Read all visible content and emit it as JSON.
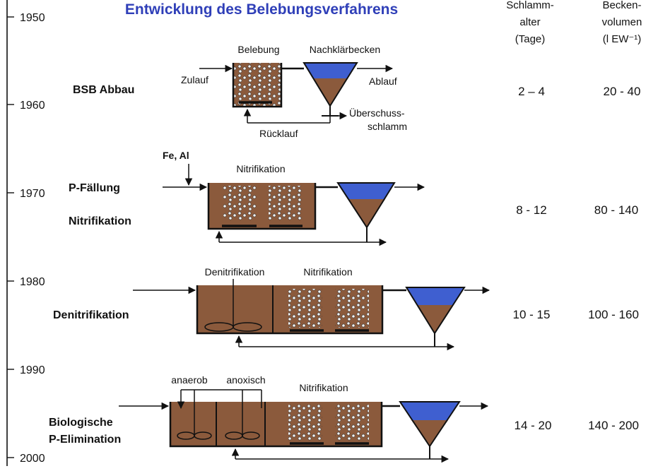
{
  "title": "Entwicklung des Belebungsverfahrens",
  "timeline": {
    "years": [
      "1950",
      "1960",
      "1970",
      "1980",
      "1990",
      "2000"
    ]
  },
  "columns": {
    "sludge_age": [
      "Schlamm-",
      "alter",
      "(Tage)"
    ],
    "tank_volume": [
      "Becken-",
      "volumen",
      "(l EW⁻¹)"
    ]
  },
  "stages": [
    {
      "labels": [
        "BSB Abbau"
      ],
      "tank_labels": [
        "Belebung",
        "Nachklärbecken"
      ],
      "flow_labels": [
        "Zulauf",
        "Ablauf",
        "Überschuss-",
        "schlamm",
        "Rücklauf"
      ],
      "sludge_age": "2 – 4",
      "tank_volume": "20 - 40"
    },
    {
      "labels": [
        "P-Fällung",
        "Nitrifikation"
      ],
      "tank_labels": [
        "Nitrifikation"
      ],
      "dosing": "Fe, Al",
      "sludge_age": "8 - 12",
      "tank_volume": "80 - 140"
    },
    {
      "labels": [
        "Denitrifikation"
      ],
      "tank_labels": [
        "Denitrifikation",
        "Nitrifikation"
      ],
      "sludge_age": "10 - 15",
      "tank_volume": "100 - 160"
    },
    {
      "labels": [
        "Biologische",
        "P-Elimination"
      ],
      "tank_labels": [
        "anaerob",
        "anoxisch",
        "Nitrifikation"
      ],
      "sludge_age": "14 - 20",
      "tank_volume": "140 - 200"
    }
  ],
  "colors": {
    "title": "#2f3fb8",
    "sludge": "#8b5a3c",
    "water": "#3f5fd0",
    "bubble": "#f4f4f4"
  }
}
